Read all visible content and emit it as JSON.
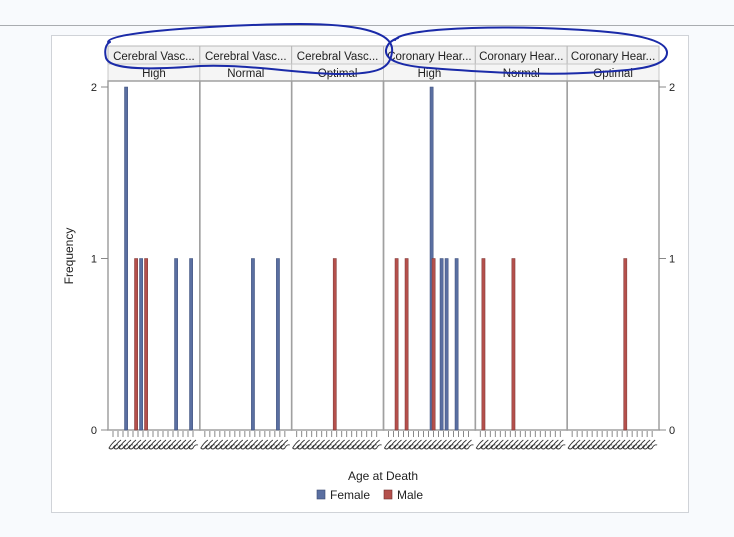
{
  "chart_data": {
    "type": "bar",
    "subtype": "paneled histogram (frequency by age at death, grouped by sex)",
    "xlabel": "Age at Death",
    "ylabel": "Frequency",
    "ylim": [
      0,
      2
    ],
    "yticks": [
      0,
      1,
      2
    ],
    "x_tick_labels_note": "rotated overlapping age values, illegible",
    "bins_per_panel": 17,
    "legend": {
      "placement": "bottom",
      "entries": [
        {
          "name": "Female",
          "color": "#5a6fa1"
        },
        {
          "name": "Male",
          "color": "#b4504c"
        }
      ]
    },
    "panels": [
      {
        "label": "Cerebral Vasc...",
        "sublabel": "High",
        "bars": [
          {
            "bin": 2,
            "series": "Female",
            "value": 2
          },
          {
            "bin": 4,
            "series": "Male",
            "value": 1
          },
          {
            "bin": 5,
            "series": "Female",
            "value": 1
          },
          {
            "bin": 6,
            "series": "Male",
            "value": 1
          },
          {
            "bin": 12,
            "series": "Female",
            "value": 1
          },
          {
            "bin": 15,
            "series": "Female",
            "value": 1
          }
        ]
      },
      {
        "label": "Cerebral Vasc...",
        "sublabel": "Normal",
        "bars": [
          {
            "bin": 9,
            "series": "Female",
            "value": 1
          },
          {
            "bin": 14,
            "series": "Female",
            "value": 1
          }
        ]
      },
      {
        "label": "Cerebral Vasc...",
        "sublabel": "Optimal",
        "bars": [
          {
            "bin": 7,
            "series": "Male",
            "value": 1
          }
        ]
      },
      {
        "label": "Coronary Hear...",
        "sublabel": "High",
        "bars": [
          {
            "bin": 1,
            "series": "Male",
            "value": 1
          },
          {
            "bin": 3,
            "series": "Male",
            "value": 1
          },
          {
            "bin": 8,
            "series": "Female",
            "value": 2
          },
          {
            "bin": 8.4,
            "series": "Male",
            "value": 1
          },
          {
            "bin": 10,
            "series": "Female",
            "value": 1
          },
          {
            "bin": 11,
            "series": "Female",
            "value": 1
          },
          {
            "bin": 13,
            "series": "Female",
            "value": 1
          }
        ]
      },
      {
        "label": "Coronary Hear...",
        "sublabel": "Normal",
        "bars": [
          {
            "bin": 0,
            "series": "Male",
            "value": 1
          },
          {
            "bin": 6,
            "series": "Male",
            "value": 1
          }
        ]
      },
      {
        "label": "Coronary Hear...",
        "sublabel": "Optimal",
        "bars": [
          {
            "bin": 10,
            "series": "Male",
            "value": 1
          }
        ]
      }
    ]
  },
  "annotations": {
    "ink_color": "#1a2aa8",
    "description": "Two hand-drawn blue loops circling the Cerebral Vasc... and Coronary Hear... panel headers"
  }
}
